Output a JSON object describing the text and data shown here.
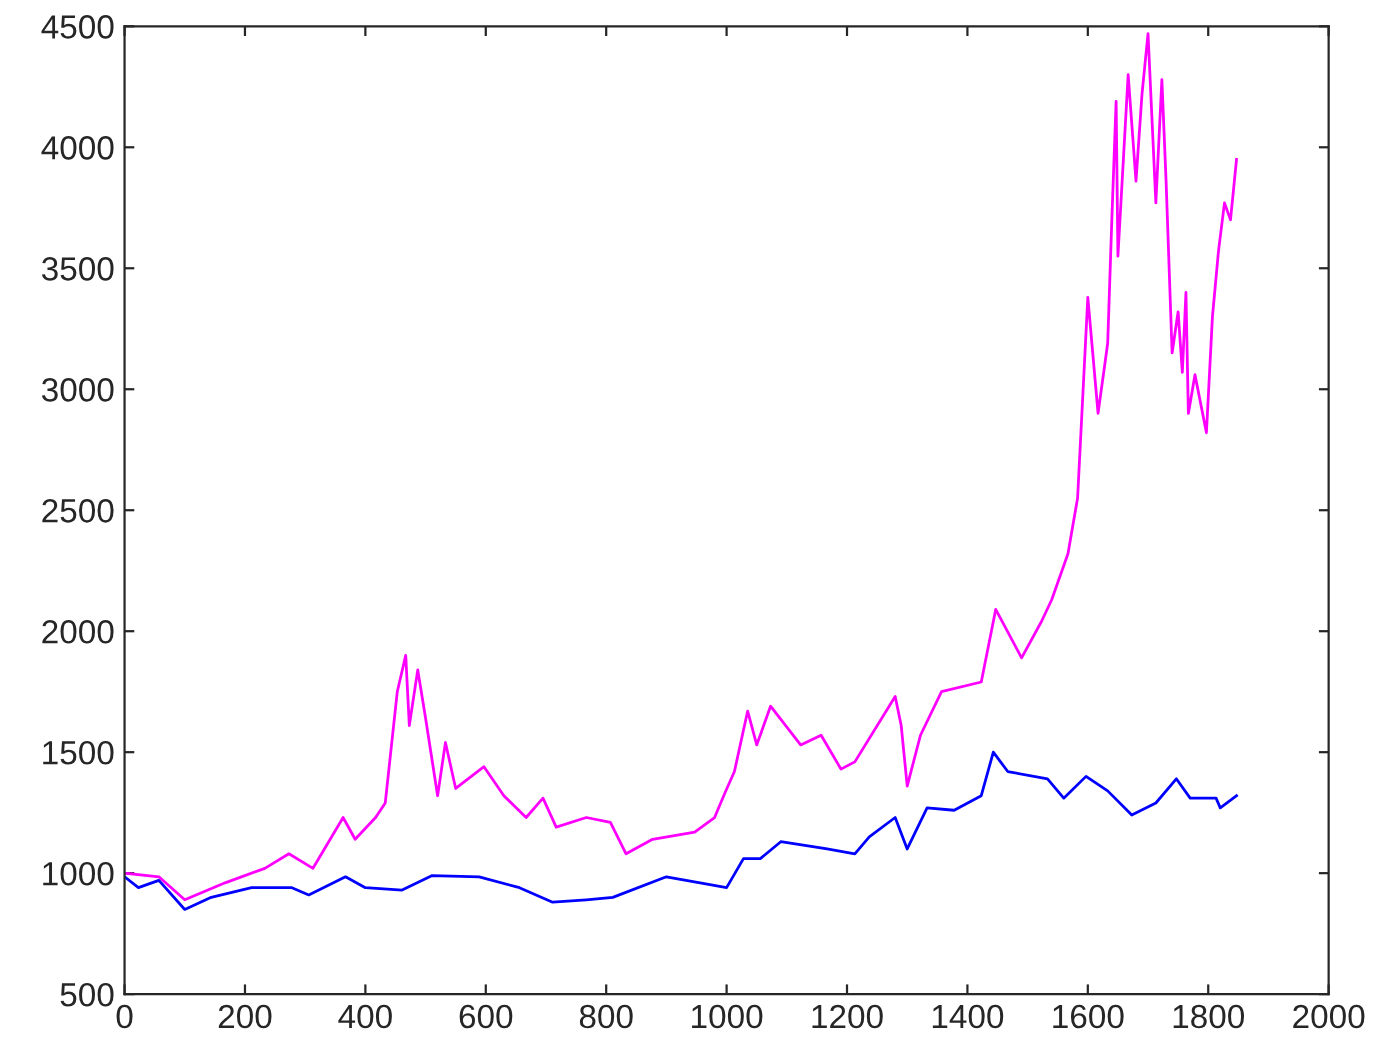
{
  "chart_data": {
    "type": "line",
    "xlim": [
      0,
      2000
    ],
    "ylim": [
      500,
      4500
    ],
    "xticks": [
      0,
      200,
      400,
      600,
      800,
      1000,
      1200,
      1400,
      1600,
      1800,
      2000
    ],
    "yticks": [
      500,
      1000,
      1500,
      2000,
      2500,
      3000,
      3500,
      4000,
      4500
    ],
    "grid": false,
    "legend": false,
    "series": [
      {
        "color": "#ff00ff",
        "x": [
          0,
          57,
          100,
          167,
          233,
          273,
          313,
          363,
          383,
          417,
          433,
          453,
          467,
          473,
          487,
          500,
          520,
          533,
          550,
          597,
          630,
          667,
          695,
          717,
          767,
          807,
          833,
          877,
          947,
          980,
          997,
          1013,
          1035,
          1050,
          1073,
          1123,
          1157,
          1190,
          1213,
          1280,
          1290,
          1300,
          1322,
          1357,
          1423,
          1447,
          1490,
          1523,
          1540,
          1567,
          1583,
          1600,
          1617,
          1633,
          1640,
          1647,
          1650,
          1667,
          1680,
          1690,
          1700,
          1713,
          1723,
          1730,
          1740,
          1750,
          1757,
          1763,
          1767,
          1778,
          1797,
          1807,
          1817,
          1827,
          1837,
          1847
        ],
        "values": [
          1000,
          985,
          890,
          960,
          1020,
          1080,
          1020,
          1230,
          1140,
          1230,
          1290,
          1750,
          1900,
          1610,
          1840,
          1640,
          1320,
          1540,
          1350,
          1440,
          1320,
          1230,
          1310,
          1190,
          1230,
          1210,
          1080,
          1140,
          1170,
          1230,
          1330,
          1420,
          1670,
          1530,
          1690,
          1530,
          1570,
          1430,
          1460,
          1730,
          1610,
          1360,
          1570,
          1750,
          1790,
          2090,
          1890,
          2040,
          2130,
          2320,
          2550,
          3380,
          2900,
          3190,
          3710,
          4190,
          3550,
          4300,
          3860,
          4220,
          4470,
          3770,
          4280,
          3860,
          3150,
          3320,
          3070,
          3400,
          2900,
          3060,
          2820,
          3300,
          3570,
          3770,
          3700,
          3950
        ]
      },
      {
        "color": "#0000ff",
        "x": [
          0,
          23,
          57,
          100,
          144,
          211,
          278,
          306,
          367,
          400,
          461,
          511,
          589,
          656,
          711,
          767,
          811,
          900,
          956,
          1000,
          1028,
          1056,
          1090,
          1167,
          1213,
          1237,
          1280,
          1300,
          1333,
          1378,
          1423,
          1443,
          1467,
          1533,
          1560,
          1597,
          1633,
          1673,
          1713,
          1747,
          1770,
          1813,
          1820,
          1847
        ],
        "values": [
          985,
          940,
          970,
          850,
          900,
          940,
          940,
          910,
          985,
          940,
          930,
          990,
          985,
          940,
          880,
          890,
          900,
          985,
          960,
          940,
          1060,
          1060,
          1130,
          1100,
          1080,
          1150,
          1230,
          1100,
          1270,
          1260,
          1320,
          1500,
          1420,
          1390,
          1310,
          1400,
          1340,
          1240,
          1290,
          1390,
          1310,
          1310,
          1270,
          1320
        ]
      }
    ]
  }
}
